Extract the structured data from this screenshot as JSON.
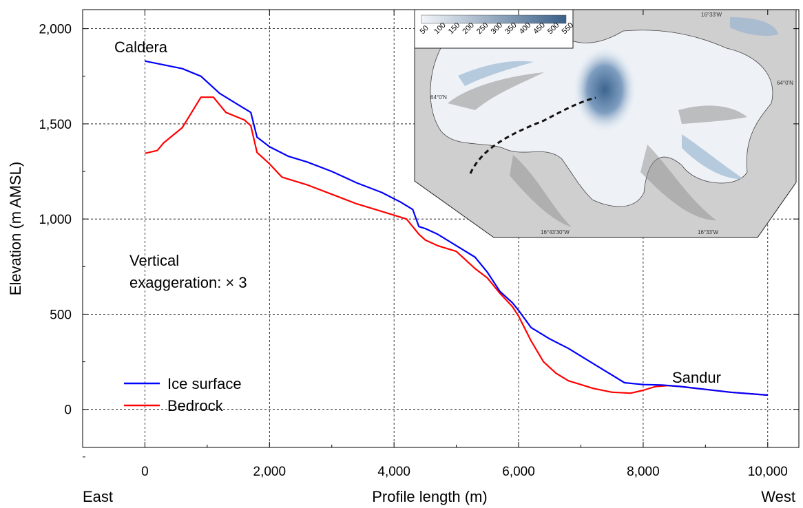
{
  "chart_data": {
    "type": "line",
    "title": "",
    "xlabel": "Profile length (m)",
    "ylabel": "Elevation (m AMSL)",
    "xlim": [
      -1000,
      10500
    ],
    "ylim": [
      -200,
      2100
    ],
    "x_ticks": [
      0,
      2000,
      4000,
      6000,
      8000,
      10000
    ],
    "x_tick_labels": [
      "0",
      "2,000",
      "4,000",
      "6,000",
      "8,000",
      "10,000"
    ],
    "y_ticks": [
      0,
      500,
      1000,
      1500,
      2000
    ],
    "y_tick_labels": [
      "0",
      "500",
      "1,000",
      "1,500",
      "2,000"
    ],
    "grid": true,
    "legend_position": "bottom-left",
    "series": [
      {
        "name": "Ice surface",
        "color": "#0000ff",
        "x": [
          0,
          300,
          600,
          900,
          1200,
          1500,
          1700,
          1800,
          2000,
          2300,
          2600,
          3000,
          3400,
          3800,
          4100,
          4300,
          4400,
          4500,
          4700,
          5000,
          5300,
          5500,
          5700,
          5900,
          6000,
          6200,
          6500,
          6800,
          7100,
          7400,
          7700,
          8000,
          8300,
          8600,
          9000,
          9400,
          10000
        ],
        "y": [
          1830,
          1810,
          1790,
          1750,
          1660,
          1600,
          1560,
          1430,
          1380,
          1330,
          1300,
          1250,
          1190,
          1140,
          1090,
          1050,
          960,
          950,
          920,
          860,
          800,
          720,
          620,
          560,
          520,
          430,
          370,
          320,
          260,
          200,
          140,
          130,
          128,
          120,
          105,
          90,
          75
        ]
      },
      {
        "name": "Bedrock",
        "color": "#ff0000",
        "x": [
          0,
          200,
          300,
          600,
          900,
          1100,
          1300,
          1600,
          1700,
          1800,
          2000,
          2200,
          2600,
          3000,
          3400,
          3800,
          4200,
          4400,
          4500,
          4700,
          5000,
          5300,
          5500,
          5700,
          5900,
          6000,
          6200,
          6400,
          6600,
          6800,
          7000,
          7200,
          7500,
          7800,
          8000,
          8200,
          8400,
          8600,
          9000,
          9400,
          10000
        ],
        "y": [
          1345,
          1360,
          1400,
          1480,
          1640,
          1640,
          1560,
          1520,
          1490,
          1350,
          1290,
          1220,
          1180,
          1130,
          1080,
          1040,
          1000,
          920,
          890,
          860,
          830,
          740,
          690,
          610,
          540,
          490,
          360,
          250,
          190,
          150,
          130,
          110,
          90,
          85,
          100,
          120,
          125,
          120,
          105,
          90,
          75
        ]
      }
    ],
    "annotations": {
      "top_left": "Caldera",
      "exaggeration_line1": "Vertical",
      "exaggeration_line2": "exaggeration: × 3",
      "right": "Sandur",
      "east": "East",
      "west": "West"
    },
    "inset_map": {
      "colorbar_labels": [
        "50",
        "100",
        "150",
        "200",
        "250",
        "300",
        "350",
        "400",
        "450",
        "500",
        "550"
      ],
      "coord_labels": [
        "16°33'W",
        "64°0'N",
        "64°0'N",
        "16°43'30\"W",
        "16°33'W"
      ]
    }
  }
}
